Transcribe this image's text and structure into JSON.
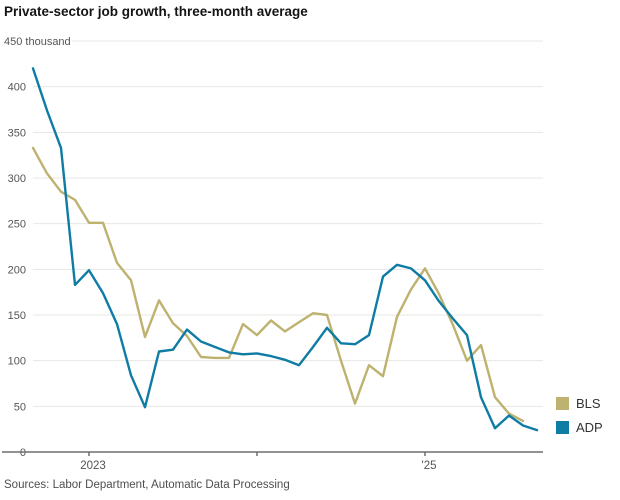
{
  "chart": {
    "title": "Private-sector job growth, three-month average",
    "source": "Sources: Labor Department, Automatic Data Processing"
  },
  "legend": {
    "entries": [
      {
        "label": "BLS",
        "color": "#bdb26f"
      },
      {
        "label": "ADP",
        "color": "#0f7ca4"
      }
    ]
  },
  "colors": {
    "bls_line": "#bdb26f",
    "adp_line": "#0f7ca4",
    "gridline": "#e7e7e3",
    "axis": "#6e6e6e",
    "tick_text": "#555555"
  },
  "chart_data": {
    "type": "line",
    "unit": "thousand",
    "x_start_month": "Sep 2022",
    "x_end_month": "Sep 2025",
    "ylim": [
      0,
      450
    ],
    "y_tick_step": 50,
    "y_top_label": "450 thousand",
    "y_ticks": [
      0,
      50,
      100,
      150,
      200,
      250,
      300,
      350,
      400
    ],
    "x_ticks": [
      {
        "label": "2023",
        "month_index": 4
      },
      {
        "label": "",
        "month_index": 16
      },
      {
        "label": "'25",
        "month_index": 28
      }
    ],
    "grid": "horizontal",
    "legend_position": "right-bottom",
    "series": [
      {
        "name": "BLS",
        "color": "#bdb26f",
        "values": [
          333,
          305,
          285,
          276,
          251,
          251,
          207,
          188,
          126,
          166,
          141,
          127,
          104,
          103,
          103,
          140,
          128,
          144,
          132,
          142,
          152,
          150,
          100,
          53,
          95,
          83,
          148,
          178,
          201,
          173,
          139,
          100,
          117,
          60,
          42,
          34
        ]
      },
      {
        "name": "ADP",
        "color": "#0f7ca4",
        "values": [
          420,
          374,
          333,
          183,
          199,
          174,
          140,
          84,
          49,
          110,
          112,
          134,
          121,
          115,
          109,
          107,
          108,
          105,
          101,
          95,
          115,
          136,
          119,
          118,
          128,
          192,
          205,
          201,
          188,
          165,
          146,
          128,
          60,
          26,
          40,
          29,
          24
        ]
      }
    ]
  }
}
